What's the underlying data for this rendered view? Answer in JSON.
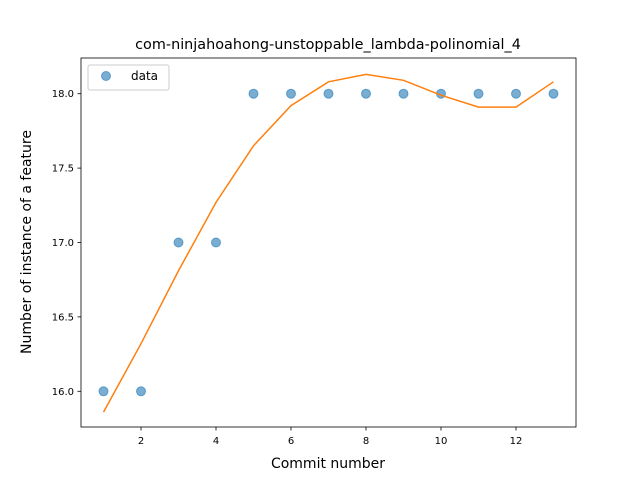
{
  "chart_data": {
    "type": "scatter",
    "title": "com-ninjahoahong-unstoppable_lambda-polinomial_4",
    "xlabel": "Commit number",
    "ylabel": "Number of instance of a feature",
    "xlim": [
      0.4,
      13.6
    ],
    "ylim": [
      15.76,
      18.24
    ],
    "xticks": [
      2,
      4,
      6,
      8,
      10,
      12
    ],
    "yticks": [
      16.0,
      16.5,
      17.0,
      17.5,
      18.0
    ],
    "grid": false,
    "legend": {
      "placement": "top-left",
      "entries": [
        "data"
      ]
    },
    "series": [
      {
        "name": "data",
        "kind": "scatter",
        "color": "#1f77b4",
        "x": [
          1,
          2,
          3,
          4,
          5,
          6,
          7,
          8,
          9,
          10,
          11,
          12,
          13
        ],
        "y": [
          16,
          16,
          17,
          17,
          18,
          18,
          18,
          18,
          18,
          18,
          18,
          18,
          18
        ]
      },
      {
        "kind": "line",
        "color": "#ff7f0e",
        "x": [
          1,
          2,
          3,
          4,
          5,
          6,
          7,
          8,
          9,
          10,
          11,
          12,
          13
        ],
        "y": [
          15.86,
          16.32,
          16.81,
          17.27,
          17.65,
          17.92,
          18.08,
          18.13,
          18.09,
          17.99,
          17.91,
          17.91,
          18.08
        ]
      }
    ]
  }
}
